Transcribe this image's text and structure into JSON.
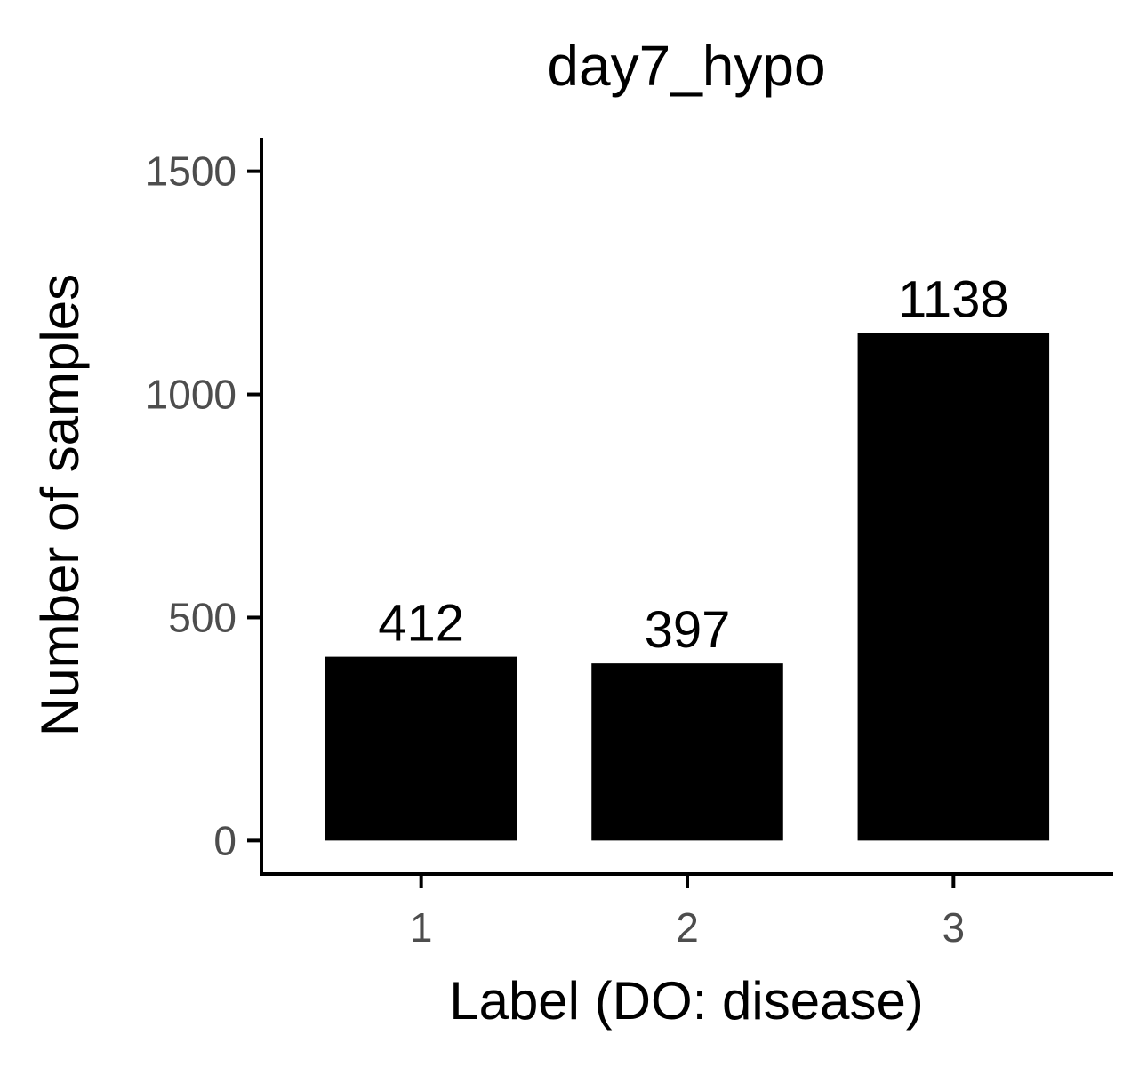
{
  "chart_data": {
    "type": "bar",
    "title": "day7_hypo",
    "xlabel": "Label (DO: disease)",
    "ylabel": "Number of samples",
    "categories": [
      "1",
      "2",
      "3"
    ],
    "values": [
      412,
      397,
      1138
    ],
    "data_labels": [
      "412",
      "397",
      "1138"
    ],
    "yticks": [
      0,
      500,
      1000,
      1500
    ],
    "ytick_labels": [
      "0",
      "500",
      "1000",
      "1500"
    ],
    "ylim": [
      -75,
      1575
    ],
    "grid": false,
    "legend": "none",
    "colors": {
      "bar": "#000000",
      "axis": "#000000",
      "tick_text": "#4d4d4d",
      "text": "#000000",
      "background": "#ffffff"
    }
  }
}
